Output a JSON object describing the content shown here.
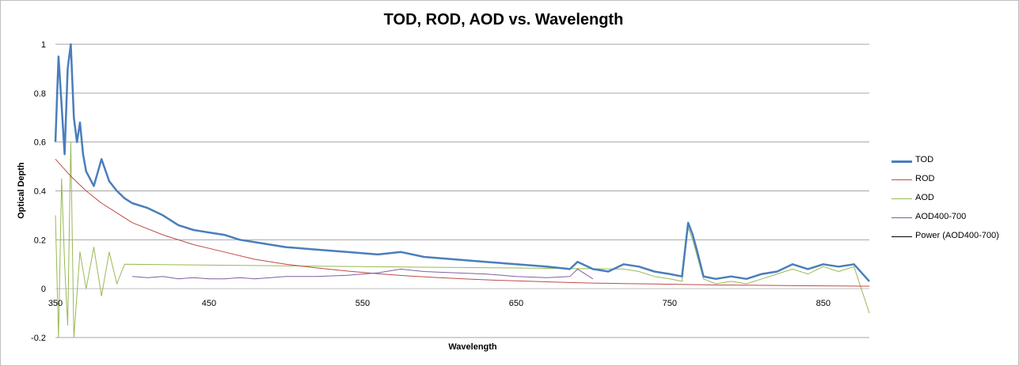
{
  "chart_data": {
    "type": "line",
    "title": "TOD, ROD, AOD vs. Wavelength",
    "xlabel": "Wavelength",
    "ylabel": "Optical Depth",
    "xlim": [
      350,
      880
    ],
    "ylim": [
      -0.2,
      1
    ],
    "x_ticks": [
      350,
      450,
      550,
      650,
      750,
      850
    ],
    "x_tick_labels": [
      "350",
      "450",
      "550",
      "650",
      "750",
      "850"
    ],
    "y_ticks": [
      -0.2,
      0,
      0.2,
      0.4,
      0.6,
      0.8,
      1
    ],
    "y_tick_labels": [
      "-0.2",
      "0",
      "0.2",
      "0.4",
      "0.6",
      "0.8",
      "1"
    ],
    "grid": true,
    "legend_position": "right",
    "series": [
      {
        "name": "TOD",
        "color": "#4a7ebb",
        "width": 2.5,
        "x": [
          350,
          352,
          354,
          356,
          358,
          360,
          362,
          364,
          366,
          368,
          370,
          375,
          380,
          385,
          390,
          395,
          400,
          410,
          420,
          430,
          440,
          450,
          460,
          470,
          480,
          490,
          500,
          520,
          540,
          560,
          575,
          590,
          610,
          630,
          650,
          670,
          685,
          690,
          700,
          710,
          720,
          730,
          740,
          750,
          758,
          762,
          765,
          768,
          772,
          780,
          790,
          800,
          810,
          820,
          830,
          840,
          850,
          860,
          870,
          880
        ],
        "y": [
          0.6,
          0.95,
          0.75,
          0.55,
          0.9,
          1.0,
          0.7,
          0.6,
          0.68,
          0.55,
          0.48,
          0.42,
          0.53,
          0.44,
          0.4,
          0.37,
          0.35,
          0.33,
          0.3,
          0.26,
          0.24,
          0.23,
          0.22,
          0.2,
          0.19,
          0.18,
          0.17,
          0.16,
          0.15,
          0.14,
          0.15,
          0.13,
          0.12,
          0.11,
          0.1,
          0.09,
          0.08,
          0.11,
          0.08,
          0.07,
          0.1,
          0.09,
          0.07,
          0.06,
          0.05,
          0.27,
          0.22,
          0.15,
          0.05,
          0.04,
          0.05,
          0.04,
          0.06,
          0.07,
          0.1,
          0.08,
          0.1,
          0.09,
          0.1,
          0.03
        ]
      },
      {
        "name": "ROD",
        "color": "#be4b48",
        "width": 1,
        "x": [
          350,
          360,
          370,
          380,
          390,
          400,
          420,
          440,
          460,
          480,
          500,
          520,
          540,
          560,
          580,
          600,
          620,
          640,
          660,
          680,
          700,
          720,
          740,
          760,
          780,
          800,
          820,
          840,
          860,
          880
        ],
        "y": [
          0.53,
          0.46,
          0.4,
          0.35,
          0.31,
          0.27,
          0.22,
          0.18,
          0.15,
          0.12,
          0.1,
          0.085,
          0.072,
          0.061,
          0.052,
          0.045,
          0.039,
          0.034,
          0.03,
          0.026,
          0.023,
          0.021,
          0.019,
          0.017,
          0.015,
          0.014,
          0.013,
          0.012,
          0.011,
          0.01
        ]
      },
      {
        "name": "AOD",
        "color": "#98b954",
        "width": 1,
        "x": [
          350,
          352,
          354,
          356,
          358,
          360,
          362,
          366,
          370,
          375,
          380,
          385,
          390,
          395,
          720,
          730,
          740,
          750,
          758,
          762,
          765,
          768,
          772,
          780,
          790,
          800,
          810,
          820,
          830,
          840,
          850,
          860,
          870,
          880
        ],
        "y": [
          0.3,
          -0.2,
          0.45,
          0.1,
          -0.15,
          0.6,
          -0.2,
          0.15,
          0.0,
          0.17,
          -0.03,
          0.15,
          0.02,
          0.1,
          0.08,
          0.07,
          0.05,
          0.04,
          0.03,
          0.25,
          0.2,
          0.13,
          0.04,
          0.02,
          0.03,
          0.02,
          0.04,
          0.06,
          0.08,
          0.06,
          0.09,
          0.07,
          0.09,
          -0.1
        ]
      },
      {
        "name": "AOD400-700",
        "color": "#7d60a0",
        "width": 1,
        "x": [
          400,
          410,
          420,
          430,
          440,
          450,
          460,
          470,
          480,
          490,
          500,
          520,
          540,
          560,
          575,
          590,
          610,
          630,
          650,
          670,
          685,
          690,
          700
        ],
        "y": [
          0.05,
          0.045,
          0.05,
          0.04,
          0.045,
          0.04,
          0.04,
          0.045,
          0.04,
          0.045,
          0.05,
          0.05,
          0.055,
          0.065,
          0.08,
          0.07,
          0.065,
          0.06,
          0.05,
          0.045,
          0.05,
          0.08,
          0.04
        ]
      },
      {
        "name": "Power (AOD400-700)",
        "color": "#000000",
        "width": 1,
        "x": [],
        "y": []
      }
    ]
  }
}
